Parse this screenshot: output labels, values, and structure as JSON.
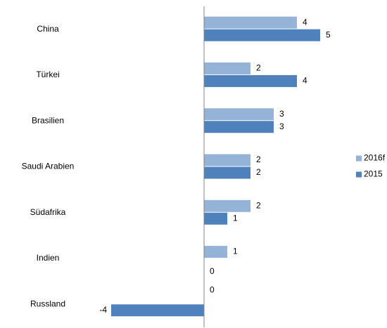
{
  "chart_data": {
    "type": "hbar",
    "categories": [
      "China",
      "Türkei",
      "Brasilien",
      "Saudi Arabien",
      "Südafrika",
      "Indien",
      "Russland"
    ],
    "series": [
      {
        "name": "2016f",
        "color": "#95b3d7",
        "values": [
          4,
          2,
          3,
          2,
          2,
          1,
          0
        ]
      },
      {
        "name": "2015",
        "color": "#4f81bd",
        "values": [
          5,
          4,
          3,
          2,
          1,
          0,
          -4
        ]
      }
    ],
    "xlim": [
      -4,
      5
    ],
    "legend": "right"
  }
}
